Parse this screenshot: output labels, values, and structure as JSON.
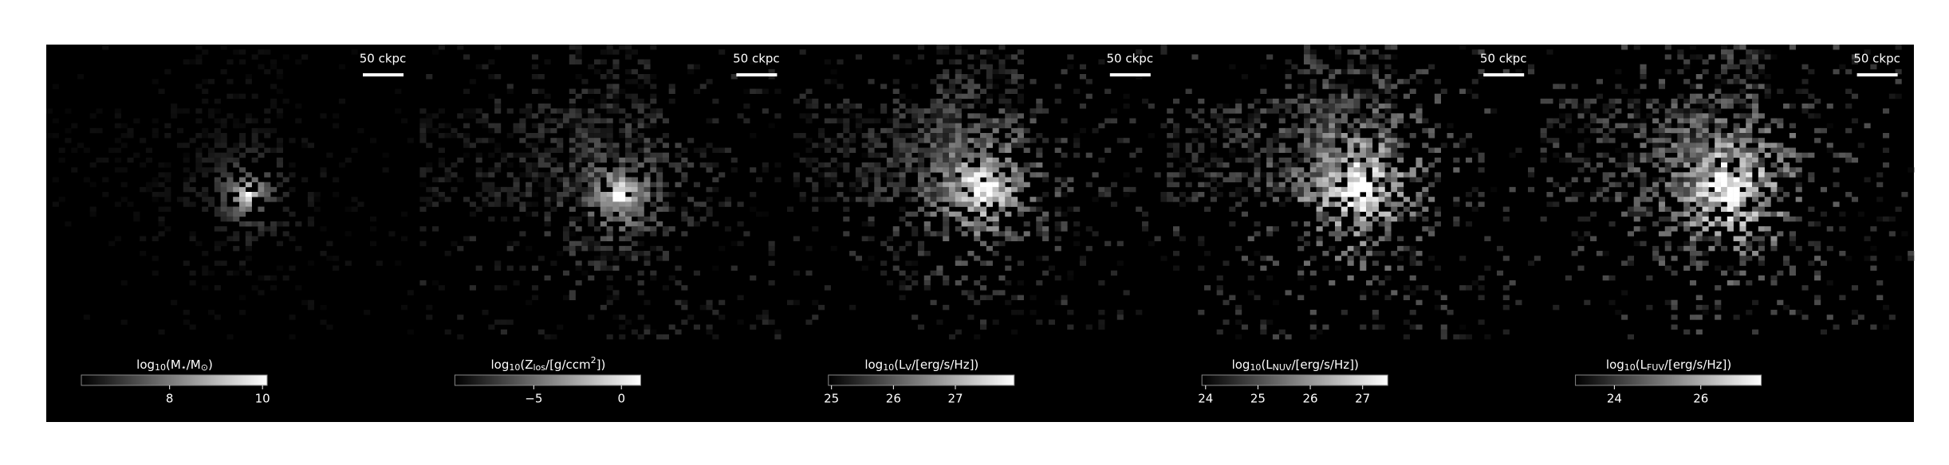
{
  "panels": [
    {
      "scale_bar": "50 ckpc",
      "colorbar": {
        "label": [
          {
            "text": "log"
          },
          {
            "text": "10",
            "sub": true
          },
          {
            "text": "(M"
          },
          {
            "text": "⋆",
            "sub": true
          },
          {
            "text": "/M"
          },
          {
            "text": "⊙",
            "sub": true
          },
          {
            "text": ")"
          }
        ],
        "lim": [
          6.1,
          10.1
        ],
        "ticks": [
          8,
          10
        ]
      }
    },
    {
      "scale_bar": "50 ckpc",
      "colorbar": {
        "label": [
          {
            "text": "log"
          },
          {
            "text": "10",
            "sub": true
          },
          {
            "text": "(Z"
          },
          {
            "text": "los",
            "sub": true
          },
          {
            "text": "/[g/ccm"
          },
          {
            "text": "2",
            "sup": true
          },
          {
            "text": "])"
          }
        ],
        "lim": [
          -9.5,
          1.1
        ],
        "ticks": [
          {
            "value": -5,
            "label": "−5"
          },
          0
        ]
      }
    },
    {
      "scale_bar": "50 ckpc",
      "colorbar": {
        "label": [
          {
            "text": "log"
          },
          {
            "text": "10",
            "sub": true
          },
          {
            "text": "(L"
          },
          {
            "text": "V",
            "sub": true
          },
          {
            "text": "/[erg/s/Hz])"
          }
        ],
        "lim": [
          24.95,
          27.95
        ],
        "ticks": [
          25,
          26,
          27
        ]
      }
    },
    {
      "scale_bar": "50 ckpc",
      "colorbar": {
        "label": [
          {
            "text": "log"
          },
          {
            "text": "10",
            "sub": true
          },
          {
            "text": "(L"
          },
          {
            "text": "NUV",
            "sub": true
          },
          {
            "text": "/[erg/s/Hz])"
          }
        ],
        "lim": [
          23.93,
          27.48
        ],
        "ticks": [
          24,
          25,
          26,
          27
        ]
      }
    },
    {
      "scale_bar": "50 ckpc",
      "colorbar": {
        "label": [
          {
            "text": "log"
          },
          {
            "text": "10",
            "sub": true
          },
          {
            "text": "(L"
          },
          {
            "text": "FUV",
            "sub": true
          },
          {
            "text": "/[erg/s/Hz])"
          }
        ],
        "lim": [
          23.1,
          27.4
        ],
        "ticks": [
          24,
          26
        ]
      }
    }
  ]
}
